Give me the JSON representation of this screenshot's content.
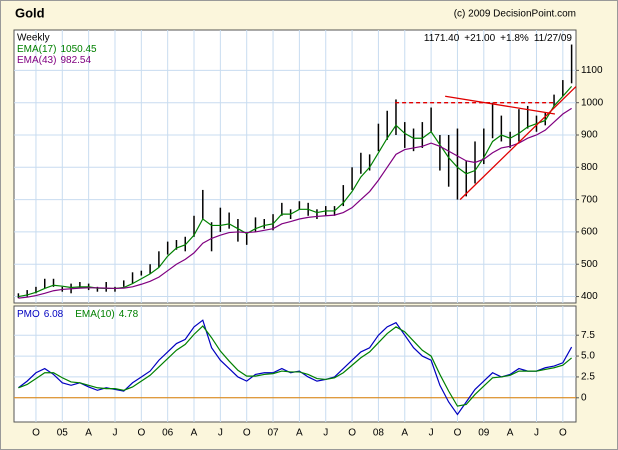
{
  "chart_data": [
    {
      "type": "hilo",
      "title": "Gold",
      "subtitle": "Weekly",
      "copyright": "(c) 2009 DecisionPoint.com",
      "quote": {
        "close": "1171.40",
        "change": "+21.00",
        "percent": "+1.8%",
        "date": "11/27/09"
      },
      "bar_color": "#000000",
      "high": [
        410,
        420,
        430,
        455,
        455,
        430,
        440,
        445,
        440,
        430,
        445,
        430,
        450,
        475,
        480,
        500,
        540,
        570,
        575,
        585,
        650,
        730,
        630,
        675,
        660,
        640,
        600,
        645,
        640,
        655,
        690,
        670,
        695,
        690,
        670,
        680,
        680,
        745,
        800,
        845,
        840,
        935,
        975,
        1010,
        940,
        920,
        940,
        985,
        900,
        900,
        920,
        820,
        880,
        920,
        1000,
        960,
        910,
        980,
        990,
        960,
        970,
        1025,
        1070,
        1180
      ],
      "low": [
        395,
        400,
        410,
        425,
        430,
        415,
        410,
        425,
        420,
        415,
        415,
        415,
        430,
        440,
        465,
        470,
        490,
        530,
        545,
        540,
        585,
        640,
        540,
        600,
        610,
        570,
        560,
        600,
        610,
        605,
        650,
        640,
        670,
        650,
        640,
        650,
        650,
        680,
        730,
        780,
        790,
        850,
        885,
        900,
        860,
        850,
        860,
        910,
        790,
        740,
        700,
        710,
        750,
        810,
        890,
        880,
        860,
        880,
        920,
        910,
        930,
        990,
        1020,
        1060
      ],
      "series": [
        {
          "name": "EMA(17)",
          "color": "#008000",
          "values": [
            400,
            405,
            413,
            425,
            435,
            432,
            428,
            430,
            430,
            426,
            425,
            425,
            428,
            440,
            455,
            470,
            490,
            525,
            550,
            560,
            590,
            640,
            620,
            620,
            625,
            610,
            595,
            610,
            620,
            625,
            655,
            655,
            670,
            670,
            660,
            665,
            665,
            690,
            725,
            770,
            800,
            845,
            890,
            930,
            905,
            890,
            890,
            910,
            870,
            830,
            800,
            780,
            790,
            830,
            880,
            900,
            890,
            905,
            925,
            935,
            945,
            990,
            1020,
            1050.45
          ]
        },
        {
          "name": "EMA(43)",
          "color": "#800080",
          "values": [
            395,
            398,
            403,
            410,
            418,
            422,
            424,
            426,
            427,
            427,
            426,
            425,
            426,
            430,
            438,
            447,
            460,
            480,
            500,
            515,
            535,
            565,
            580,
            590,
            598,
            600,
            598,
            600,
            605,
            610,
            625,
            632,
            640,
            645,
            648,
            650,
            652,
            660,
            675,
            700,
            725,
            760,
            800,
            840,
            855,
            860,
            865,
            875,
            865,
            850,
            835,
            820,
            815,
            825,
            845,
            860,
            865,
            875,
            890,
            900,
            915,
            940,
            965,
            982.54
          ]
        }
      ],
      "trendlines": [
        {
          "x": [
            42.9,
            61.1
          ],
          "y": [
            1000,
            1000
          ],
          "dashed": true,
          "color": "#e00000"
        },
        {
          "x": [
            48.6,
            61.1
          ],
          "y": [
            1020,
            965
          ],
          "dashed": false,
          "color": "#e00000"
        },
        {
          "x": [
            50.3,
            63.5
          ],
          "y": [
            700,
            1050
          ],
          "dashed": false,
          "color": "#e00000"
        }
      ],
      "ylim": [
        380,
        1225
      ],
      "yticks": [
        400,
        500,
        600,
        700,
        800,
        900,
        1000,
        1100
      ],
      "grid": true
    },
    {
      "type": "line",
      "categories": [
        null,
        null,
        "O",
        null,
        null,
        "05",
        null,
        null,
        "A",
        null,
        null,
        "J",
        null,
        null,
        "O",
        null,
        null,
        "06",
        null,
        null,
        "A",
        null,
        null,
        "J",
        null,
        null,
        "O",
        null,
        null,
        "07",
        null,
        null,
        "A",
        null,
        null,
        "J",
        null,
        null,
        "O",
        null,
        null,
        "08",
        null,
        null,
        "A",
        null,
        null,
        "J",
        null,
        null,
        "O",
        null,
        null,
        "09",
        null,
        null,
        "A",
        null,
        null,
        "J",
        null,
        null,
        "O",
        null
      ],
      "series": [
        {
          "name": "PMO",
          "color": "#0000c0",
          "values": [
            1.2,
            2.0,
            3.0,
            3.5,
            2.8,
            1.8,
            1.5,
            1.8,
            1.3,
            0.9,
            1.2,
            1.0,
            0.8,
            1.8,
            2.5,
            3.2,
            4.5,
            5.5,
            6.5,
            7.0,
            8.5,
            9.3,
            6.0,
            4.5,
            3.5,
            2.5,
            2.0,
            2.8,
            3.0,
            3.0,
            3.5,
            3.0,
            3.2,
            2.5,
            2.0,
            2.2,
            2.5,
            3.5,
            4.5,
            5.5,
            6.0,
            7.5,
            8.5,
            9.0,
            7.5,
            6.0,
            5.0,
            4.5,
            1.5,
            -0.5,
            -2.0,
            -0.5,
            1.0,
            2.0,
            3.0,
            2.5,
            2.8,
            3.5,
            3.2,
            3.2,
            3.6,
            3.8,
            4.2,
            6.08
          ]
        },
        {
          "name": "EMA(10)",
          "color": "#008000",
          "values": [
            1.2,
            1.6,
            2.3,
            3.0,
            3.0,
            2.4,
            1.9,
            1.8,
            1.5,
            1.2,
            1.1,
            1.1,
            0.9,
            1.3,
            2.0,
            2.7,
            3.7,
            4.7,
            5.7,
            6.4,
            7.6,
            8.6,
            7.2,
            5.6,
            4.4,
            3.3,
            2.6,
            2.6,
            2.8,
            2.9,
            3.2,
            3.1,
            3.1,
            2.8,
            2.3,
            2.2,
            2.4,
            3.0,
            3.9,
            4.8,
            5.5,
            6.6,
            7.7,
            8.5,
            7.9,
            6.8,
            5.7,
            5.0,
            2.8,
            0.8,
            -1.0,
            -0.8,
            0.4,
            1.4,
            2.4,
            2.5,
            2.7,
            3.2,
            3.2,
            3.2,
            3.4,
            3.6,
            3.9,
            4.78
          ]
        }
      ],
      "zero_line": {
        "y": 0,
        "color": "#e08000"
      },
      "ylim": [
        -2.9,
        11
      ],
      "yticks": [
        {
          "value": 0,
          "label": "0"
        },
        2.5,
        {
          "value": 5,
          "label": "5.0"
        },
        7.5
      ],
      "grid": true
    }
  ]
}
